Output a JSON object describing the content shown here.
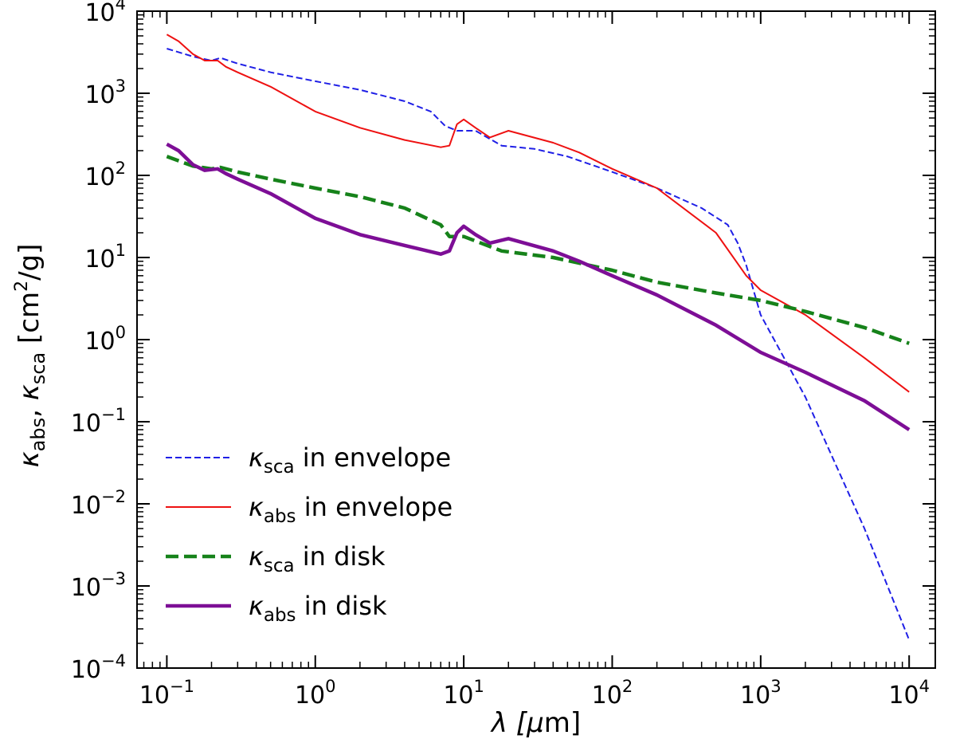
{
  "chart_data": {
    "type": "line",
    "title": "",
    "xscale": "log",
    "yscale": "log",
    "xlim": [
      0.063,
      15000
    ],
    "ylim": [
      0.0001,
      10000
    ],
    "xlabel": {
      "main": "λ [",
      "mu": "μ",
      "tail": "m]"
    },
    "ylabel": {
      "k1": "κ",
      "sub1": "abs",
      "sep": ", ",
      "k2": "κ",
      "sub2": "sca",
      "unit_open": " [cm",
      "unit_sup": "2",
      "unit_close": "/g]"
    },
    "xticks": [
      {
        "value": 0.1,
        "base": "10",
        "exp": "−1"
      },
      {
        "value": 1,
        "base": "10",
        "exp": "0"
      },
      {
        "value": 10,
        "base": "10",
        "exp": "1"
      },
      {
        "value": 100,
        "base": "10",
        "exp": "2"
      },
      {
        "value": 1000,
        "base": "10",
        "exp": "3"
      },
      {
        "value": 10000,
        "base": "10",
        "exp": "4"
      }
    ],
    "yticks": [
      {
        "value": 0.0001,
        "base": "10",
        "exp": "−4"
      },
      {
        "value": 0.001,
        "base": "10",
        "exp": "−3"
      },
      {
        "value": 0.01,
        "base": "10",
        "exp": "−2"
      },
      {
        "value": 0.1,
        "base": "10",
        "exp": "−1"
      },
      {
        "value": 1,
        "base": "10",
        "exp": "0"
      },
      {
        "value": 10,
        "base": "10",
        "exp": "1"
      },
      {
        "value": 100,
        "base": "10",
        "exp": "2"
      },
      {
        "value": 1000,
        "base": "10",
        "exp": "3"
      },
      {
        "value": 10000,
        "base": "10",
        "exp": "4"
      }
    ],
    "legend_position": "lower-left",
    "series": [
      {
        "id": "ksca-envelope",
        "name": "κsca in envelope",
        "kappa": "κ",
        "sub": "sca",
        "rest": " in envelope",
        "color": "#1f1fe6",
        "style": "dashed",
        "weight": "thin",
        "points": [
          [
            0.1,
            3500
          ],
          [
            0.15,
            2800
          ],
          [
            0.2,
            2500
          ],
          [
            0.23,
            2700
          ],
          [
            0.3,
            2300
          ],
          [
            0.5,
            1800
          ],
          [
            1,
            1400
          ],
          [
            2,
            1100
          ],
          [
            4,
            800
          ],
          [
            6,
            600
          ],
          [
            7.5,
            400
          ],
          [
            9,
            350
          ],
          [
            12,
            350
          ],
          [
            18,
            230
          ],
          [
            30,
            210
          ],
          [
            50,
            170
          ],
          [
            100,
            110
          ],
          [
            200,
            70
          ],
          [
            400,
            40
          ],
          [
            600,
            25
          ],
          [
            700,
            15
          ],
          [
            800,
            8
          ],
          [
            1000,
            2
          ],
          [
            2000,
            0.2
          ],
          [
            5000,
            0.005
          ],
          [
            10000,
            0.00022
          ]
        ]
      },
      {
        "id": "kabs-envelope",
        "name": "κabs in envelope",
        "kappa": "κ",
        "sub": "abs",
        "rest": " in envelope",
        "color": "#ee1111",
        "style": "solid",
        "weight": "thin",
        "points": [
          [
            0.1,
            5200
          ],
          [
            0.12,
            4300
          ],
          [
            0.15,
            3000
          ],
          [
            0.18,
            2500
          ],
          [
            0.22,
            2500
          ],
          [
            0.25,
            2100
          ],
          [
            0.3,
            1800
          ],
          [
            0.5,
            1200
          ],
          [
            1,
            600
          ],
          [
            2,
            380
          ],
          [
            4,
            270
          ],
          [
            7,
            220
          ],
          [
            8,
            230
          ],
          [
            9,
            420
          ],
          [
            10,
            480
          ],
          [
            12,
            380
          ],
          [
            15,
            290
          ],
          [
            20,
            350
          ],
          [
            40,
            250
          ],
          [
            60,
            190
          ],
          [
            100,
            120
          ],
          [
            200,
            70
          ],
          [
            500,
            20
          ],
          [
            800,
            6
          ],
          [
            1000,
            4
          ],
          [
            2000,
            2
          ],
          [
            5000,
            0.6
          ],
          [
            10000,
            0.23
          ]
        ]
      },
      {
        "id": "ksca-disk",
        "name": "κsca in disk",
        "kappa": "κ",
        "sub": "sca",
        "rest": " in disk",
        "color": "#16821a",
        "style": "dashed",
        "weight": "thick",
        "points": [
          [
            0.1,
            170
          ],
          [
            0.15,
            130
          ],
          [
            0.2,
            120
          ],
          [
            0.23,
            125
          ],
          [
            0.3,
            110
          ],
          [
            0.5,
            90
          ],
          [
            1,
            70
          ],
          [
            2,
            55
          ],
          [
            4,
            40
          ],
          [
            7,
            25
          ],
          [
            8,
            18
          ],
          [
            10,
            18
          ],
          [
            18,
            12
          ],
          [
            40,
            10
          ],
          [
            100,
            7
          ],
          [
            200,
            5
          ],
          [
            500,
            3.7
          ],
          [
            1000,
            3
          ],
          [
            2000,
            2.2
          ],
          [
            5000,
            1.4
          ],
          [
            10000,
            0.9
          ]
        ]
      },
      {
        "id": "kabs-disk",
        "name": "κabs in disk",
        "kappa": "κ",
        "sub": "abs",
        "rest": " in disk",
        "color": "#7d0e96",
        "style": "solid",
        "weight": "thick",
        "points": [
          [
            0.1,
            240
          ],
          [
            0.12,
            200
          ],
          [
            0.15,
            135
          ],
          [
            0.18,
            115
          ],
          [
            0.22,
            120
          ],
          [
            0.25,
            105
          ],
          [
            0.3,
            90
          ],
          [
            0.5,
            60
          ],
          [
            1,
            30
          ],
          [
            2,
            19
          ],
          [
            4,
            14
          ],
          [
            7,
            11
          ],
          [
            8,
            12
          ],
          [
            9,
            20
          ],
          [
            10,
            24
          ],
          [
            12,
            19
          ],
          [
            15,
            15
          ],
          [
            20,
            17
          ],
          [
            40,
            12
          ],
          [
            60,
            9
          ],
          [
            100,
            6
          ],
          [
            200,
            3.5
          ],
          [
            500,
            1.5
          ],
          [
            1000,
            0.7
          ],
          [
            2000,
            0.4
          ],
          [
            5000,
            0.18
          ],
          [
            10000,
            0.08
          ]
        ]
      }
    ]
  }
}
